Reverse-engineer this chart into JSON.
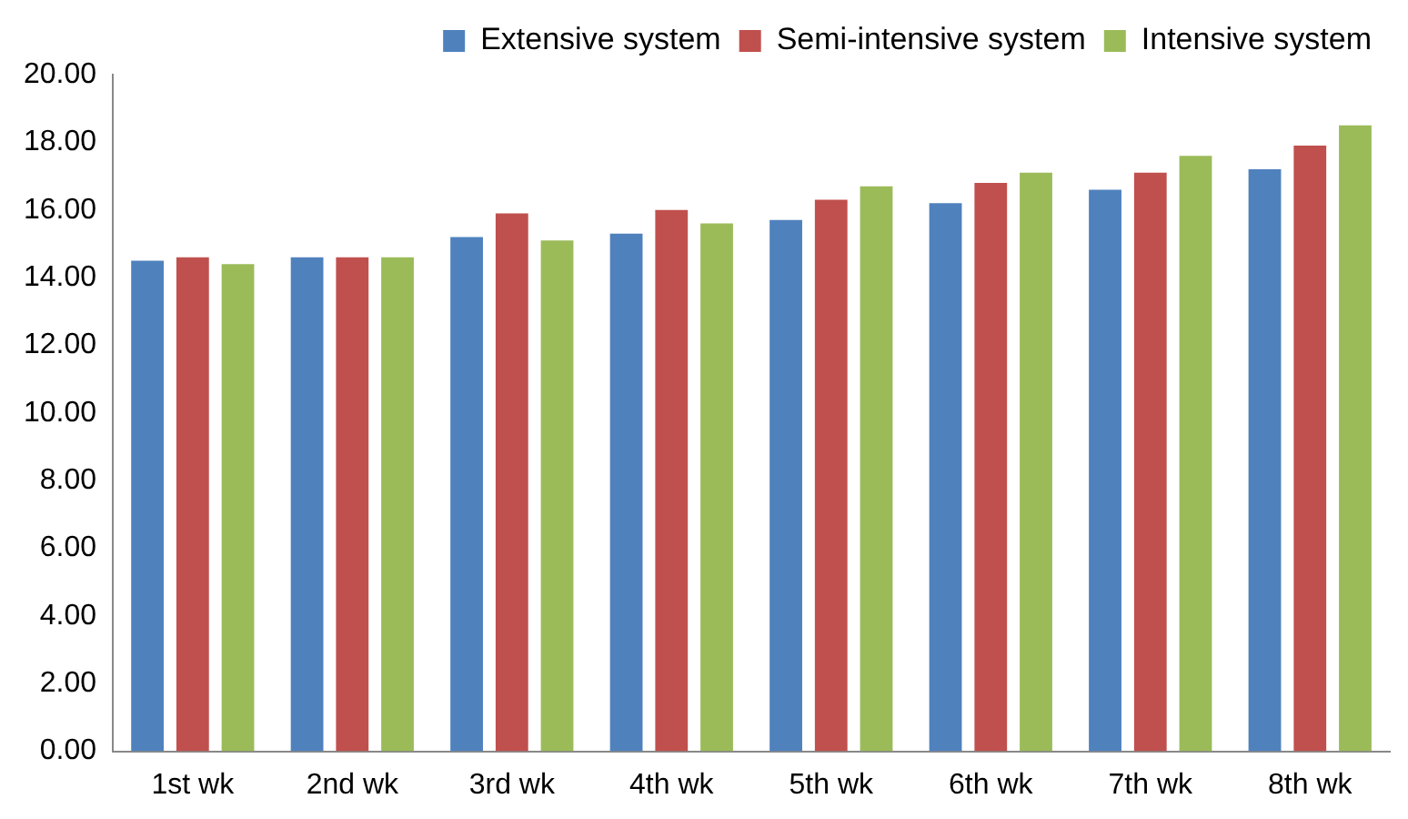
{
  "chart_data": {
    "type": "bar",
    "categories": [
      "1st wk",
      "2nd wk",
      "3rd wk",
      "4th wk",
      "5th wk",
      "6th wk",
      "7th wk",
      "8th wk"
    ],
    "series": [
      {
        "name": "Extensive system",
        "color": "#4f81bd",
        "values": [
          14.5,
          14.6,
          15.2,
          15.3,
          15.7,
          16.2,
          16.6,
          17.2
        ]
      },
      {
        "name": "Semi-intensive system",
        "color": "#c0504d",
        "values": [
          14.6,
          14.6,
          15.9,
          16.0,
          16.3,
          16.8,
          17.1,
          17.9
        ]
      },
      {
        "name": "Intensive system",
        "color": "#9bbb59",
        "values": [
          14.4,
          14.6,
          15.1,
          15.6,
          16.7,
          17.1,
          17.6,
          18.5
        ]
      }
    ],
    "ylim": [
      0,
      20
    ],
    "yticks": [
      {
        "value": 0,
        "label": "0.00"
      },
      {
        "value": 2,
        "label": "2.00"
      },
      {
        "value": 4,
        "label": "4.00"
      },
      {
        "value": 6,
        "label": "6.00"
      },
      {
        "value": 8,
        "label": "8.00"
      },
      {
        "value": 10,
        "label": "10.00"
      },
      {
        "value": 12,
        "label": "12.00"
      },
      {
        "value": 14,
        "label": "14.00"
      },
      {
        "value": 16,
        "label": "16.00"
      },
      {
        "value": 18,
        "label": "18.00"
      },
      {
        "value": 20,
        "label": "20.00"
      }
    ],
    "grid": false,
    "legend": "top"
  }
}
